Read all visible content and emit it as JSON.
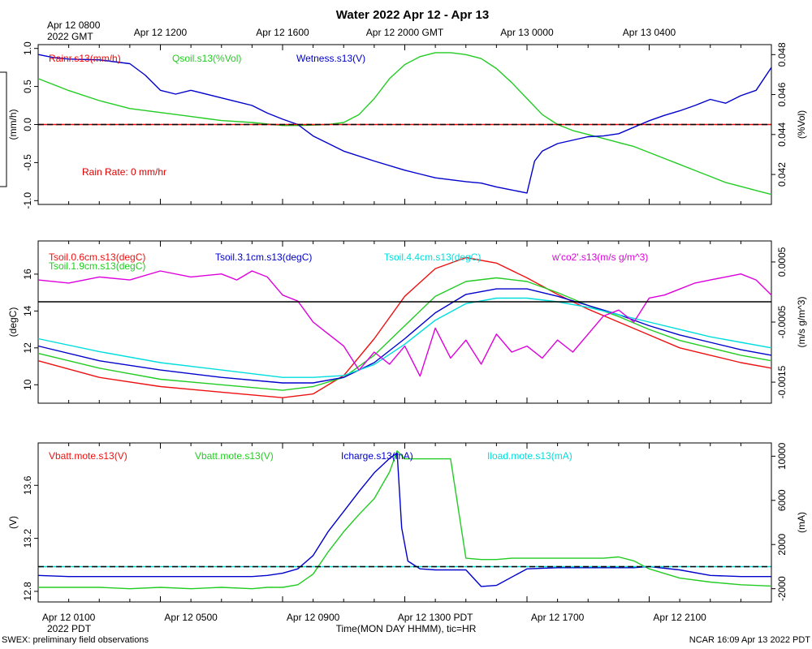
{
  "chart_data": {
    "type": "line",
    "title": "Water 2022 Apr 12 - Apr 13",
    "top_axis": {
      "origin_label": [
        "Apr 12 0800",
        "2022 GMT"
      ],
      "ticks": [
        {
          "hour": 12,
          "label": "Apr 12 1200"
        },
        {
          "hour": 16,
          "label": "Apr 12 1600"
        },
        {
          "hour": 20,
          "label": "Apr 12 2000 GMT"
        },
        {
          "hour": 24,
          "label": "Apr 13 0000"
        },
        {
          "hour": 28,
          "label": "Apr 13 0400"
        }
      ]
    },
    "bottom_axis": {
      "ticks": [
        {
          "hour": 9,
          "label": "Apr 12 0100"
        },
        {
          "hour": 13,
          "label": "Apr 12 0500"
        },
        {
          "hour": 17,
          "label": "Apr 12 0900"
        },
        {
          "hour": 21,
          "label": "Apr 12 1300 PDT"
        },
        {
          "hour": 25,
          "label": "Apr 12 1700"
        },
        {
          "hour": 29,
          "label": "Apr 12 2100"
        }
      ],
      "year_label": "2022 PDT",
      "xlabel": "Time(MON DAY HHMM), tic=HR"
    },
    "x_range_gmt_hours": [
      8,
      32
    ],
    "footer_left": "SWEX: preliminary field observations",
    "footer_right": "NCAR 16:09 Apr 13 2022 PDT",
    "panels": [
      {
        "id": "water",
        "ylabel_left": "(mm/h)",
        "ylabel_right": "(%Vol)",
        "ylim_left": [
          -1.05,
          1.05
        ],
        "yticks_left": [
          -1.0,
          -0.5,
          0.0,
          0.5,
          1.0
        ],
        "ylim_right": [
          0.0405,
          0.0485
        ],
        "yticks_right": [
          0.042,
          0.044,
          0.046,
          0.048
        ],
        "ref_lines": [
          {
            "axis": "left",
            "value": 0,
            "color": "#ff0000"
          },
          {
            "axis": "left",
            "value": 0,
            "color": "#000000"
          }
        ],
        "annotation": {
          "text": "Rain Rate: 0 mm/hr",
          "color": "#dd0000"
        },
        "series": [
          {
            "name": "Rainr.s13(mm/h)",
            "color": "#ff0000",
            "axis": "left",
            "values": []
          },
          {
            "name": "Qsoil.s13(%Vol)",
            "color": "#22cc22",
            "axis": "right",
            "x": [
              8,
              9,
              10,
              11,
              12,
              13,
              14,
              15,
              16,
              16.5,
              17,
              17.5,
              18,
              18.5,
              19,
              19.5,
              20,
              20.5,
              21,
              21.5,
              22,
              22.5,
              23,
              23.5,
              24,
              24.5,
              25,
              25.5,
              26,
              26.5,
              27,
              27.5,
              28,
              28.5,
              29,
              29.5,
              30,
              30.5,
              31,
              31.5,
              32
            ],
            "values": [
              0.0468,
              0.0462,
              0.0457,
              0.0453,
              0.0451,
              0.0449,
              0.0447,
              0.0446,
              0.04445,
              0.04445,
              0.04447,
              0.0445,
              0.0446,
              0.045,
              0.0458,
              0.0468,
              0.0475,
              0.0479,
              0.0481,
              0.0481,
              0.048,
              0.0478,
              0.0473,
              0.0466,
              0.0458,
              0.045,
              0.0445,
              0.0442,
              0.044,
              0.0438,
              0.0436,
              0.0434,
              0.0431,
              0.0428,
              0.0425,
              0.0422,
              0.0419,
              0.0416,
              0.0414,
              0.0412,
              0.041
            ]
          },
          {
            "name": "Wetness.s13(V)",
            "color": "#0000cc",
            "axis": "left",
            "x": [
              8,
              8.5,
              9,
              10,
              11,
              11.5,
              12,
              12.5,
              13,
              14,
              15,
              15.5,
              16,
              16.5,
              17,
              18,
              19,
              20,
              20.5,
              21,
              22,
              22.5,
              23,
              23.5,
              24,
              24.25,
              24.5,
              25,
              26,
              26.5,
              27,
              28,
              28.5,
              29,
              29.5,
              30,
              30.5,
              31,
              31.5,
              32
            ],
            "values": [
              0.92,
              0.88,
              0.86,
              0.85,
              0.8,
              0.65,
              0.45,
              0.4,
              0.45,
              0.35,
              0.25,
              0.15,
              0.07,
              0.0,
              -0.15,
              -0.35,
              -0.48,
              -0.6,
              -0.65,
              -0.7,
              -0.75,
              -0.77,
              -0.82,
              -0.86,
              -0.9,
              -0.48,
              -0.35,
              -0.25,
              -0.16,
              -0.15,
              -0.12,
              0.05,
              0.12,
              0.18,
              0.25,
              0.33,
              0.28,
              0.38,
              0.45,
              0.75
            ]
          }
        ]
      },
      {
        "id": "tsoil",
        "ylabel_left": "(degC)",
        "ylabel_right": "(m/s g/m^3)",
        "ylim_left": [
          9.0,
          17.8
        ],
        "yticks_left": [
          10,
          12,
          14,
          16
        ],
        "ylim_right": [
          -0.00185,
          0.00085
        ],
        "yticks_right": [
          -0.0015,
          -0.0005,
          0.0005
        ],
        "yticklabels_right": [
          "-0.0015",
          "-0.0005",
          "0.0005"
        ],
        "ref_lines": [
          {
            "axis": "left",
            "value": 14.5,
            "color": "#000000"
          }
        ],
        "series": [
          {
            "name": "Tsoil.0.6cm.s13(degC)",
            "color": "#ee1111",
            "axis": "left",
            "x": [
              8,
              10,
              12,
              14,
              16,
              17,
              18,
              19,
              20,
              21,
              22,
              23,
              24,
              25,
              26,
              27,
              28,
              29,
              30,
              31,
              32
            ],
            "values": [
              11.3,
              10.4,
              9.9,
              9.6,
              9.3,
              9.5,
              10.5,
              12.5,
              14.8,
              16.3,
              16.9,
              16.6,
              15.8,
              14.9,
              14.1,
              13.4,
              12.7,
              12.0,
              11.6,
              11.2,
              10.9
            ]
          },
          {
            "name": "Tsoil.1.9cm.s13(degC)",
            "color": "#22cc22",
            "axis": "left",
            "x": [
              8,
              10,
              12,
              14,
              16,
              17,
              18,
              19,
              20,
              21,
              22,
              23,
              24,
              25,
              26,
              27,
              28,
              29,
              30,
              31,
              32
            ],
            "values": [
              11.7,
              10.9,
              10.3,
              10.0,
              9.7,
              9.9,
              10.4,
              11.6,
              13.2,
              14.8,
              15.6,
              15.8,
              15.6,
              15.0,
              14.3,
              13.7,
              13.0,
              12.4,
              12.0,
              11.6,
              11.3
            ]
          },
          {
            "name": "Tsoil.3.1cm.s13(degC)",
            "color": "#0000cc",
            "axis": "left",
            "x": [
              8,
              10,
              12,
              14,
              16,
              17,
              18,
              19,
              20,
              21,
              22,
              23,
              24,
              25,
              26,
              27,
              28,
              29,
              30,
              31,
              32
            ],
            "values": [
              12.1,
              11.3,
              10.8,
              10.4,
              10.1,
              10.1,
              10.4,
              11.2,
              12.5,
              13.9,
              14.9,
              15.2,
              15.2,
              14.8,
              14.3,
              13.8,
              13.2,
              12.7,
              12.3,
              11.9,
              11.6
            ]
          },
          {
            "name": "Tsoil.4.4cm.s13(degC)",
            "color": "#00dddd",
            "axis": "left",
            "x": [
              8,
              10,
              12,
              14,
              16,
              17,
              18,
              19,
              20,
              21,
              22,
              23,
              24,
              25,
              26,
              27,
              28,
              29,
              30,
              31,
              32
            ],
            "values": [
              12.5,
              11.8,
              11.2,
              10.8,
              10.4,
              10.4,
              10.5,
              11.1,
              12.2,
              13.5,
              14.4,
              14.7,
              14.7,
              14.5,
              14.2,
              13.8,
              13.4,
              13.0,
              12.6,
              12.3,
              12.0
            ]
          },
          {
            "name": "w'co2'.s13(m/s g/m^3)",
            "color": "#dd00dd",
            "axis": "right",
            "x": [
              8,
              9,
              10,
              11,
              12,
              13,
              14,
              14.5,
              15,
              15.5,
              16,
              16.5,
              17,
              17.5,
              18,
              18.5,
              19,
              19.5,
              20,
              20.5,
              21,
              21.5,
              22,
              22.5,
              23,
              23.5,
              24,
              24.5,
              25,
              25.5,
              26,
              26.5,
              27,
              27.5,
              28,
              28.5,
              29,
              29.5,
              30,
              30.5,
              31,
              31.5,
              32
            ],
            "values": [
              0.0002,
              0.00015,
              0.00025,
              0.0002,
              0.00035,
              0.00025,
              0.0003,
              0.0002,
              0.00035,
              0.00025,
              -5e-05,
              -0.00015,
              -0.0005,
              -0.0007,
              -0.0009,
              -0.0013,
              -0.001,
              -0.0012,
              -0.0009,
              -0.0014,
              -0.0006,
              -0.0011,
              -0.0008,
              -0.0012,
              -0.0007,
              -0.001,
              -0.0009,
              -0.0011,
              -0.0008,
              -0.001,
              -0.0007,
              -0.0004,
              -0.0003,
              -0.0005,
              -0.0001,
              -5e-05,
              5e-05,
              0.00015,
              0.0002,
              0.00025,
              0.0003,
              0.0002,
              -5e-05
            ]
          }
        ]
      },
      {
        "id": "battery",
        "ylabel_left": "(V)",
        "ylabel_right": "(mA)",
        "ylim_left": [
          12.72,
          13.92
        ],
        "yticks_left": [
          12.8,
          13.2,
          13.6
        ],
        "ylim_right": [
          -3200,
          11200
        ],
        "yticks_right": [
          -2000,
          2000,
          6000,
          10000
        ],
        "ref_lines": [
          {
            "axis": "right",
            "value": 0,
            "color": "#00dddd"
          },
          {
            "axis": "right",
            "value": 0,
            "color": "#000000"
          }
        ],
        "series": [
          {
            "name": "Vbatt.mote.s13(V)",
            "color": "#ee1111",
            "axis": "left",
            "values": []
          },
          {
            "name": "Vbatt.mote.s13(V)",
            "color": "#22cc22",
            "axis": "left",
            "x": [
              8,
              9,
              10,
              11,
              12,
              13,
              14,
              15,
              15.5,
              16,
              16.5,
              17,
              17.5,
              18,
              18.5,
              19,
              19.5,
              19.75,
              20,
              20.5,
              21,
              21.5,
              22,
              22.5,
              23,
              23.5,
              24,
              24.5,
              25,
              25.5,
              26,
              26.5,
              27,
              27.5,
              28,
              29,
              30,
              31,
              32
            ],
            "values": [
              12.83,
              12.83,
              12.83,
              12.82,
              12.83,
              12.82,
              12.83,
              12.82,
              12.83,
              12.83,
              12.85,
              12.93,
              13.1,
              13.25,
              13.38,
              13.5,
              13.7,
              13.86,
              13.8,
              13.8,
              13.8,
              13.8,
              13.05,
              13.04,
              13.04,
              13.05,
              13.05,
              13.05,
              13.05,
              13.05,
              13.05,
              13.05,
              13.06,
              13.03,
              12.97,
              12.9,
              12.87,
              12.85,
              12.84
            ]
          },
          {
            "name": "Icharge.s13(mA)",
            "color": "#0000cc",
            "axis": "right",
            "x": [
              8,
              9,
              10,
              11,
              12,
              13,
              14,
              15,
              15.5,
              16,
              16.5,
              17,
              17.5,
              18,
              18.5,
              19,
              19.5,
              19.75,
              19.9,
              20.1,
              20.5,
              21,
              22,
              22.5,
              23,
              24,
              25,
              26,
              26.5,
              27,
              27.5,
              28,
              29,
              30,
              31,
              32
            ],
            "values": [
              -800,
              -900,
              -900,
              -900,
              -900,
              -900,
              -900,
              -900,
              -800,
              -600,
              -200,
              1000,
              3200,
              5000,
              6800,
              8500,
              9800,
              10300,
              3500,
              500,
              -200,
              -300,
              -300,
              -1800,
              -1700,
              -200,
              -100,
              -100,
              -100,
              -100,
              -100,
              0,
              -300,
              -800,
              -900,
              -900
            ]
          },
          {
            "name": "Iload.mote.s13(mA)",
            "color": "#00dddd",
            "axis": "right",
            "values": []
          }
        ]
      }
    ]
  }
}
